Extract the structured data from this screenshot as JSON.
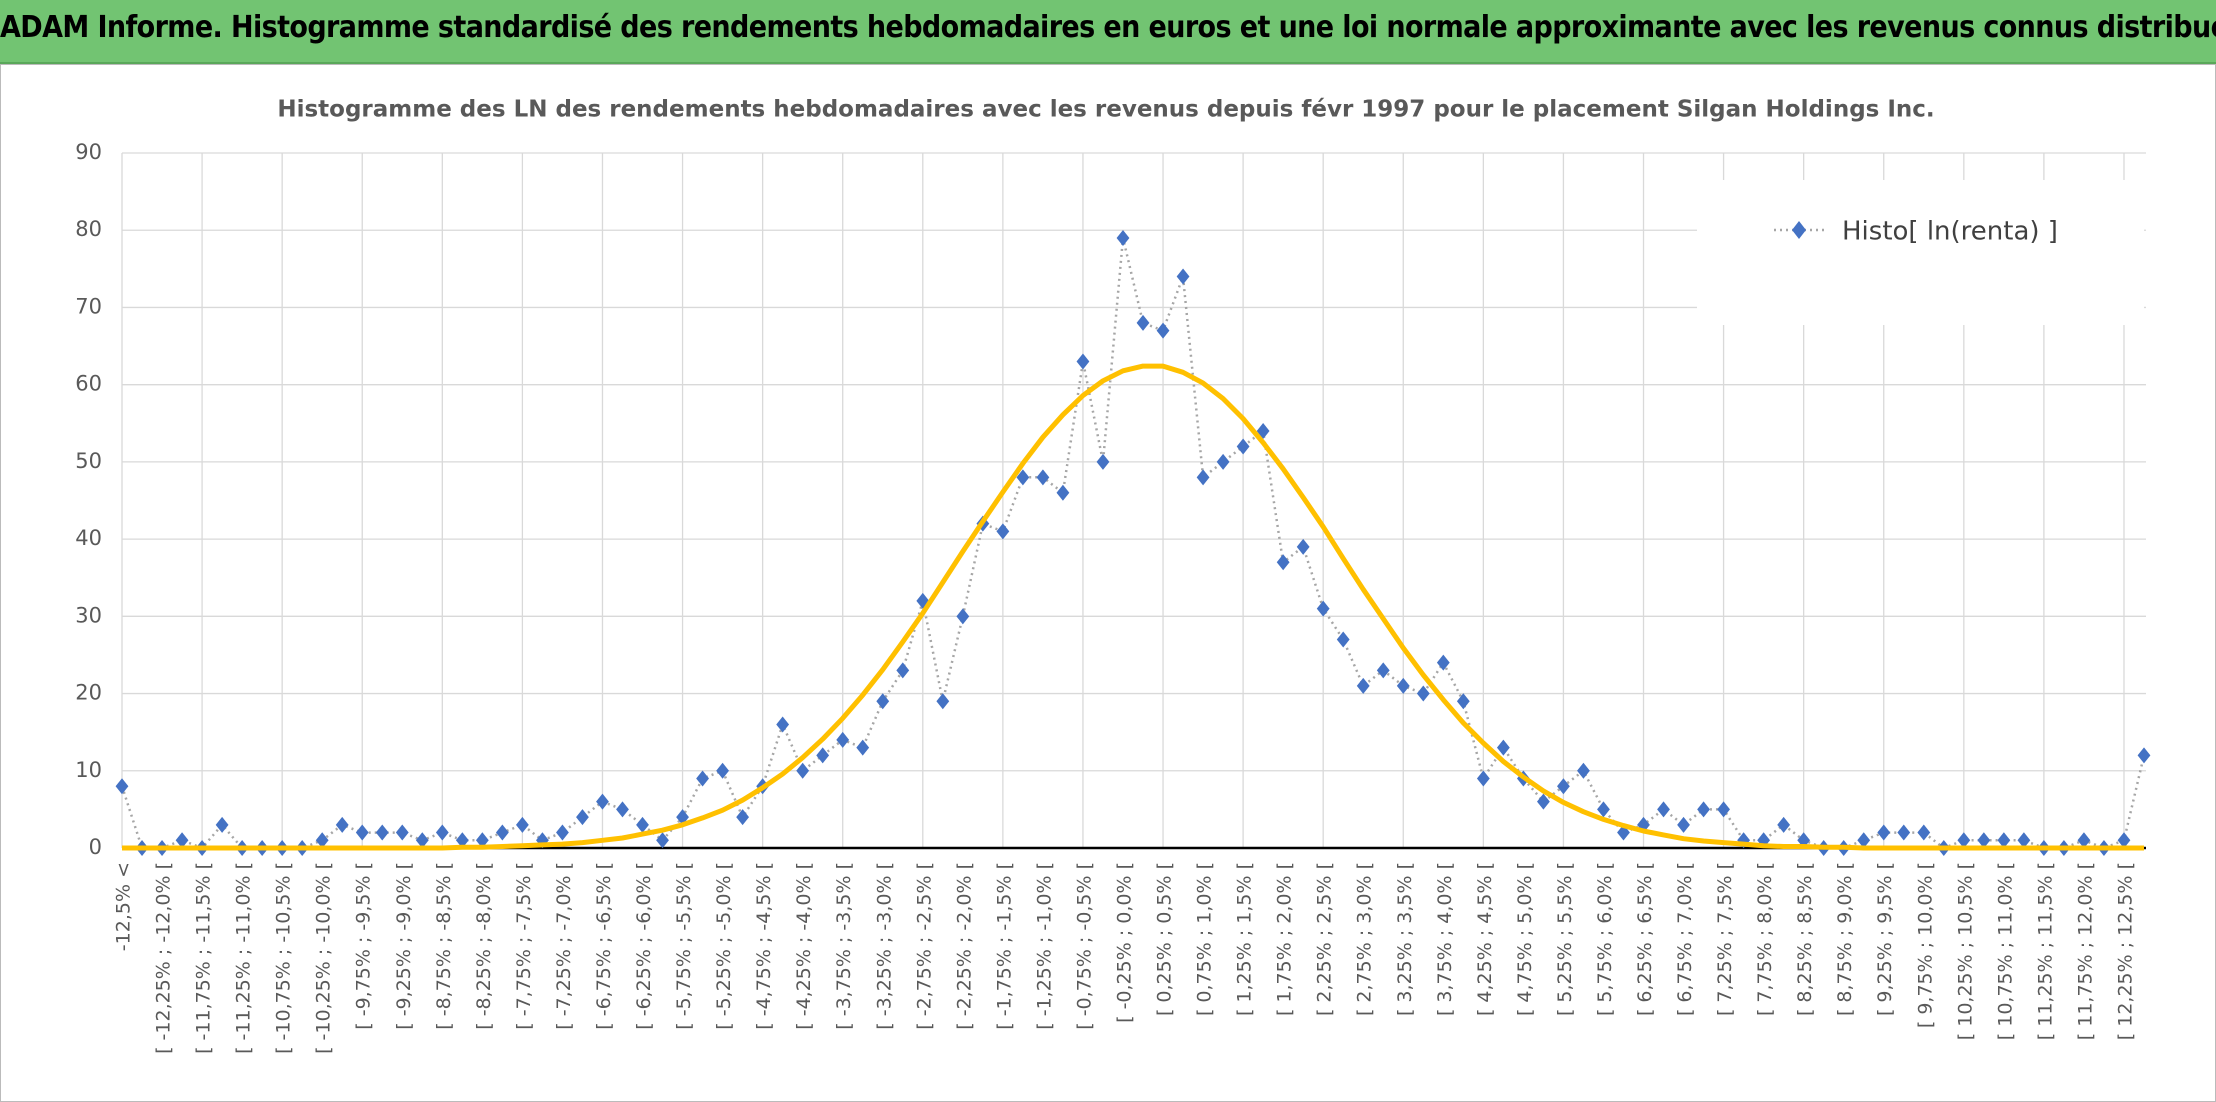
{
  "header": {
    "title": "ADAM Informe. Histogramme standardisé des rendements hebdomadaires en euros et une loi normale approximante avec les revenus connus distribués"
  },
  "chart_data": {
    "type": "line",
    "title": "Histogramme des LN des rendements hebdomadaires avec les revenus depuis févr 1997 pour le placement Silgan Holdings Inc.",
    "categories": [
      "-12,5% <",
      null,
      "[ -12,25% ; -12,0% [",
      null,
      "[ -11,75% ; -11,5% [",
      null,
      "[ -11,25% ; -11,0% [",
      null,
      "[ -10,75% ; -10,5% [",
      null,
      "[ -10,25% ; -10,0% [",
      null,
      "[ -9,75% ; -9,5% [",
      null,
      "[ -9,25% ; -9,0% [",
      null,
      "[ -8,75% ; -8,5% [",
      null,
      "[ -8,25% ; -8,0% [",
      null,
      "[ -7,75% ; -7,5% [",
      null,
      "[ -7,25% ; -7,0% [",
      null,
      "[ -6,75% ; -6,5% [",
      null,
      "[ -6,25% ; -6,0% [",
      null,
      "[ -5,75% ; -5,5% [",
      null,
      "[ -5,25% ; -5,0% [",
      null,
      "[ -4,75% ; -4,5% [",
      null,
      "[ -4,25% ; -4,0% [",
      null,
      "[ -3,75% ; -3,5% [",
      null,
      "[ -3,25% ; -3,0% [",
      null,
      "[ -2,75% ; -2,5% [",
      null,
      "[ -2,25% ; -2,0% [",
      null,
      "[ -1,75% ; -1,5% [",
      null,
      "[ -1,25% ; -1,0% [",
      null,
      "[ -0,75% ; -0,5% [",
      null,
      "[ -0,25% ; 0,0% [",
      null,
      "[ 0,25% ; 0,5% [",
      null,
      "[ 0,75% ; 1,0% [",
      null,
      "[ 1,25% ; 1,5% [",
      null,
      "[ 1,75% ; 2,0% [",
      null,
      "[ 2,25% ; 2,5% [",
      null,
      "[ 2,75% ; 3,0% [",
      null,
      "[ 3,25% ; 3,5% [",
      null,
      "[ 3,75% ; 4,0% [",
      null,
      "[ 4,25% ; 4,5% [",
      null,
      "[ 4,75% ; 5,0% [",
      null,
      "[ 5,25% ; 5,5% [",
      null,
      "[ 5,75% ; 6,0% [",
      null,
      "[ 6,25% ; 6,5% [",
      null,
      "[ 6,75% ; 7,0% [",
      null,
      "[ 7,25% ; 7,5% [",
      null,
      "[ 7,75% ; 8,0% [",
      null,
      "[ 8,25% ; 8,5% [",
      null,
      "[ 8,75% ; 9,0% [",
      null,
      "[ 9,25% ; 9,5% [",
      null,
      "[ 9,75% ; 10,0% [",
      null,
      "[ 10,25% ; 10,5% [",
      null,
      "[ 10,75% ; 11,0% [",
      null,
      "[ 11,25% ; 11,5% [",
      null,
      "[ 11,75% ; 12,0% [",
      null,
      "[ 12,25% ; 12,5% [",
      null
    ],
    "series": [
      {
        "name": "Histo[ ln(renta) ]",
        "color": "#4472c4",
        "line_color": "#a6a6a6",
        "marker": "diamond",
        "dash": "dotted",
        "values": [
          8,
          0,
          0,
          1,
          0,
          3,
          0,
          0,
          0,
          0,
          1,
          3,
          2,
          2,
          2,
          1,
          2,
          1,
          1,
          2,
          3,
          1,
          2,
          4,
          6,
          5,
          3,
          1,
          4,
          9,
          10,
          4,
          8,
          16,
          10,
          12,
          14,
          13,
          19,
          23,
          32,
          19,
          30,
          42,
          41,
          48,
          48,
          46,
          63,
          50,
          79,
          68,
          67,
          74,
          48,
          50,
          52,
          54,
          37,
          39,
          31,
          27,
          21,
          23,
          21,
          20,
          24,
          19,
          9,
          13,
          9,
          6,
          8,
          10,
          5,
          2,
          3,
          5,
          3,
          5,
          5,
          1,
          1,
          3,
          1,
          0,
          0,
          1,
          2,
          2,
          2,
          0,
          1,
          1,
          1,
          1,
          0,
          0,
          1,
          0,
          1,
          12
        ]
      },
      {
        "color": "#ffc000",
        "values": [
          0,
          0,
          0,
          0,
          0,
          0,
          0,
          0,
          0,
          0,
          0,
          0,
          0,
          0,
          0,
          0,
          0,
          0.1,
          0.1,
          0.2,
          0.3,
          0.4,
          0.5,
          0.7,
          1.0,
          1.3,
          1.8,
          2.3,
          3.0,
          3.9,
          4.9,
          6.2,
          7.8,
          9.6,
          11.7,
          14.1,
          16.8,
          19.8,
          23.1,
          26.7,
          30.4,
          34.4,
          38.4,
          42.3,
          46.1,
          49.8,
          53.2,
          56.1,
          58.6,
          60.5,
          61.8,
          62.4,
          62.4,
          61.6,
          60.2,
          58.2,
          55.6,
          52.5,
          49.1,
          45.4,
          41.6,
          37.5,
          33.5,
          29.7,
          25.9,
          22.4,
          19.2,
          16.2,
          13.6,
          11.2,
          9.2,
          7.4,
          5.9,
          4.7,
          3.7,
          2.9,
          2.2,
          1.7,
          1.2,
          0.9,
          0.7,
          0.5,
          0.3,
          0.2,
          0.2,
          0.1,
          0.1,
          0,
          0,
          0,
          0,
          0,
          0,
          0,
          0,
          0,
          0,
          0,
          0,
          0,
          0,
          0
        ]
      }
    ],
    "ylim": [
      0,
      90
    ],
    "yticks": [
      0,
      10,
      20,
      30,
      40,
      50,
      60,
      70,
      80,
      90
    ],
    "grid": true,
    "legend": "top-right"
  }
}
